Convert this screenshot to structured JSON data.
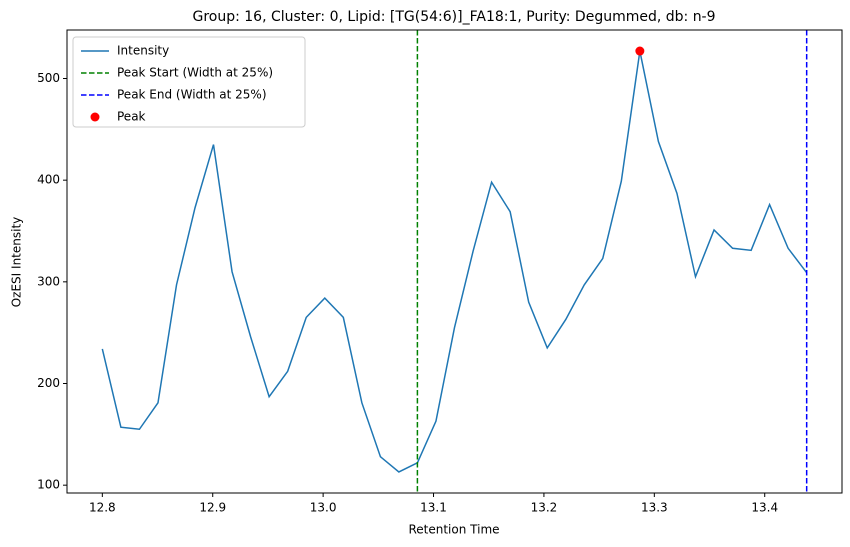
{
  "chart_data": {
    "type": "line",
    "title": "Group: 16, Cluster: 0, Lipid: [TG(54:6)]_FA18:1, Purity: Degummed, db: n-9",
    "xlabel": "Retention Time",
    "ylabel": "OzESI Intensity",
    "x": [
      12.8,
      12.8168,
      12.8336,
      12.8504,
      12.8672,
      12.884,
      12.9007,
      12.9175,
      12.9343,
      12.9511,
      12.9679,
      12.9847,
      13.0015,
      13.0183,
      13.0351,
      13.0519,
      13.0686,
      13.0854,
      13.1022,
      13.119,
      13.1358,
      13.1526,
      13.1694,
      13.1862,
      13.203,
      13.2198,
      13.2365,
      13.2533,
      13.2701,
      13.2869,
      13.3037,
      13.3205,
      13.3373,
      13.3541,
      13.3709,
      13.3877,
      13.4044,
      13.4212,
      13.438
    ],
    "series": [
      {
        "name": "Intensity",
        "color": "#1f77b4",
        "values": [
          234,
          157,
          155,
          181,
          297,
          373,
          435,
          310,
          246,
          187,
          212,
          265,
          284,
          265,
          181,
          128,
          113,
          122,
          163,
          255,
          330,
          398,
          369,
          280,
          235,
          263,
          297,
          323,
          399,
          527,
          438,
          387,
          305,
          351,
          333,
          331,
          376,
          333,
          309
        ]
      }
    ],
    "vlines": [
      {
        "name": "Peak Start (Width at 25%)",
        "color": "#008000",
        "x": 13.0854
      },
      {
        "name": "Peak End (Width at 25%)",
        "color": "#0000ff",
        "x": 13.438
      }
    ],
    "peak": {
      "name": "Peak",
      "color": "#ff0000",
      "x": 13.2869,
      "y": 527
    },
    "xlim": [
      12.768,
      13.47
    ],
    "ylim": [
      92.3,
      547.7
    ],
    "xticks": [
      12.8,
      12.9,
      {
        "value": 13,
        "label": "13.0"
      },
      13.1,
      13.2,
      13.3,
      13.4
    ],
    "yticks": [
      100,
      200,
      300,
      400,
      500
    ],
    "legend": "upper left"
  }
}
